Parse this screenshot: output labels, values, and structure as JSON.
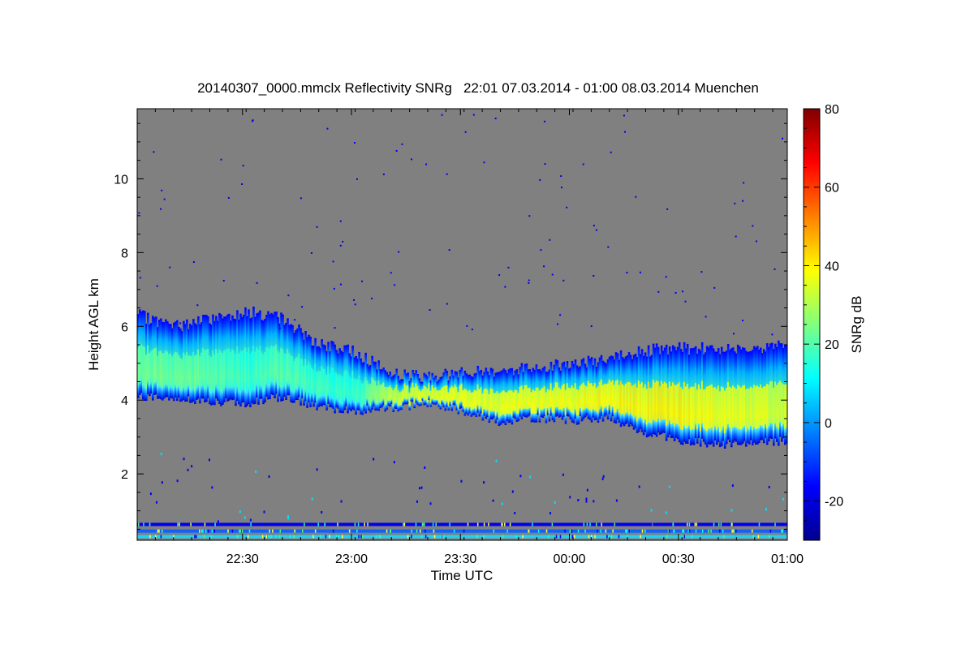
{
  "chart_data": {
    "type": "heatmap",
    "title": "20140307_0000.mmclx Reflectivity SNRg   22:01 07.03.2014 - 01:00 08.03.2014 Muenchen",
    "xlabel": "Time UTC",
    "ylabel": "Height AGL km",
    "xlim": [
      "22:01",
      "01:00"
    ],
    "ylim": [
      0.2,
      11.9
    ],
    "x_ticks": [
      "22:30",
      "23:00",
      "23:30",
      "00:00",
      "00:30",
      "01:00"
    ],
    "y_ticks": [
      "2",
      "4",
      "6",
      "8",
      "10"
    ],
    "background_color": "#808080",
    "colorbar": {
      "label": "SNRg dB",
      "range": [
        -30,
        80
      ],
      "ticks": [
        "-20",
        "0",
        "20",
        "40",
        "60",
        "80"
      ],
      "colormap": "jet"
    },
    "cloud_layer": {
      "time_minutes": [
        0,
        10,
        20,
        30,
        40,
        50,
        60,
        70,
        80,
        90,
        100,
        110,
        120,
        130,
        140,
        150,
        160,
        170,
        179
      ],
      "base_km": [
        4.1,
        4.05,
        3.95,
        3.9,
        4.1,
        3.8,
        3.7,
        3.8,
        3.9,
        3.7,
        3.4,
        3.5,
        3.45,
        3.5,
        3.1,
        2.9,
        2.8,
        2.85,
        2.9
      ],
      "top_km": [
        6.3,
        6.0,
        6.2,
        6.4,
        6.2,
        5.5,
        5.3,
        4.7,
        4.65,
        4.75,
        4.8,
        4.9,
        5.0,
        5.1,
        5.35,
        5.4,
        5.4,
        5.45,
        5.45
      ],
      "peak_snr_db": [
        22,
        21,
        18,
        15,
        18,
        14,
        14,
        32,
        36,
        37,
        36,
        37,
        38,
        39,
        40,
        39,
        37,
        35,
        33
      ]
    },
    "ground_clutter_km": [
      0.63,
      0.45,
      0.3
    ]
  }
}
